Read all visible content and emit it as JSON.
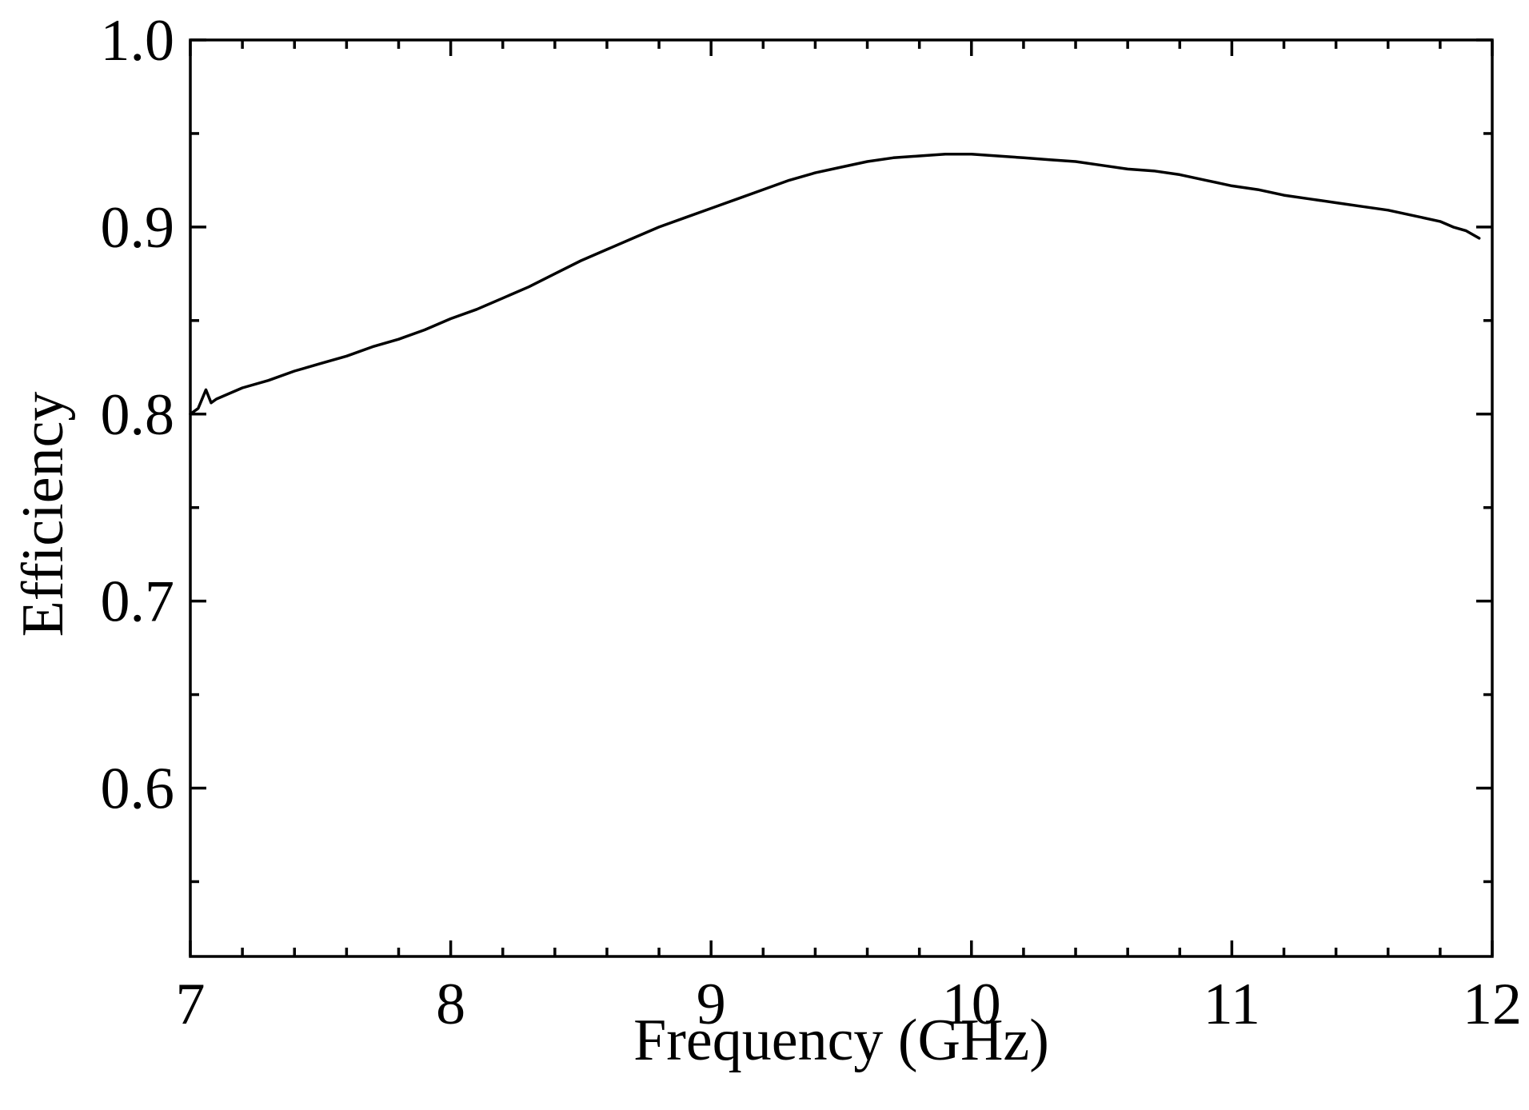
{
  "chart_data": {
    "type": "line",
    "title": "",
    "xlabel": "Frequency (GHz)",
    "ylabel": "Efficiency",
    "xlim": [
      7,
      12
    ],
    "ylim": [
      0.51,
      1.0
    ],
    "x_major_ticks": [
      7,
      8,
      9,
      10,
      11,
      12
    ],
    "x_tick_labels": [
      "7",
      "8",
      "9",
      "10",
      "11",
      "12"
    ],
    "x_minor_step": 0.2,
    "y_major_ticks": [
      0.6,
      0.7,
      0.8,
      0.9,
      1.0
    ],
    "y_tick_labels": [
      "0.6",
      "0.7",
      "0.8",
      "0.9",
      "1.0"
    ],
    "y_minor_ticks": [
      0.55,
      0.65,
      0.75,
      0.85,
      0.95
    ],
    "grid": false,
    "legend": "none",
    "line_color": "#000000",
    "series": [
      {
        "x": [
          7.0,
          7.03,
          7.06,
          7.08,
          7.1,
          7.15,
          7.2,
          7.3,
          7.4,
          7.5,
          7.6,
          7.7,
          7.8,
          7.9,
          8.0,
          8.1,
          8.2,
          8.3,
          8.4,
          8.5,
          8.6,
          8.7,
          8.8,
          8.9,
          9.0,
          9.1,
          9.2,
          9.3,
          9.4,
          9.5,
          9.6,
          9.7,
          9.8,
          9.9,
          10.0,
          10.1,
          10.2,
          10.3,
          10.4,
          10.5,
          10.6,
          10.7,
          10.8,
          10.9,
          11.0,
          11.1,
          11.2,
          11.3,
          11.4,
          11.5,
          11.6,
          11.7,
          11.8,
          11.85,
          11.9,
          11.95
        ],
        "y": [
          0.8,
          0.803,
          0.813,
          0.806,
          0.808,
          0.811,
          0.814,
          0.818,
          0.823,
          0.827,
          0.831,
          0.836,
          0.84,
          0.845,
          0.851,
          0.856,
          0.862,
          0.868,
          0.875,
          0.882,
          0.888,
          0.894,
          0.9,
          0.905,
          0.91,
          0.915,
          0.92,
          0.925,
          0.929,
          0.932,
          0.935,
          0.937,
          0.938,
          0.939,
          0.939,
          0.938,
          0.937,
          0.936,
          0.935,
          0.933,
          0.931,
          0.93,
          0.928,
          0.925,
          0.922,
          0.92,
          0.917,
          0.915,
          0.913,
          0.911,
          0.909,
          0.906,
          0.903,
          0.9,
          0.898,
          0.894
        ]
      }
    ]
  }
}
